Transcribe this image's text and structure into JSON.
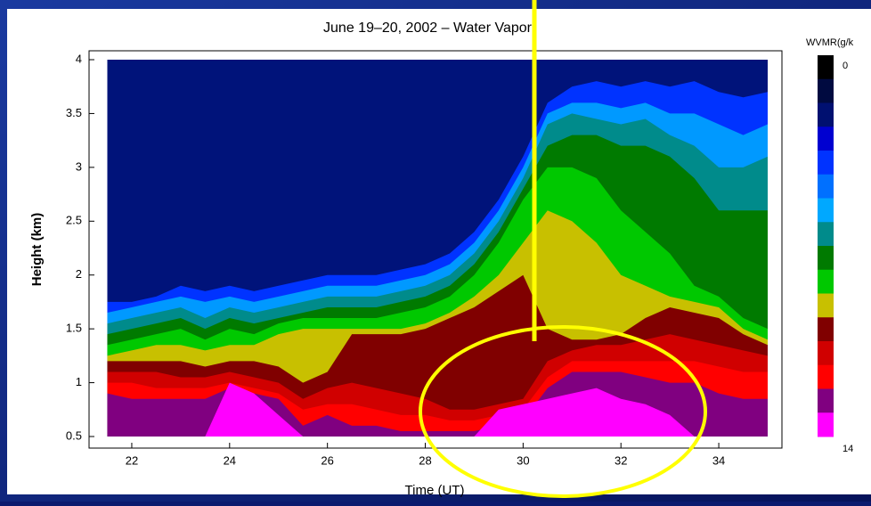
{
  "chart_data": {
    "type": "layered-area",
    "title": "June 19–20, 2002 – Water Vapor",
    "x_label": "Time (UT)",
    "y_label": "Height (km)",
    "xlim": [
      21.4,
      35
    ],
    "ylim": [
      0.5,
      4
    ],
    "xticks": [
      22,
      24,
      26,
      28,
      30,
      32,
      34
    ],
    "yticks": [
      0.5,
      1,
      1.5,
      2,
      2.5,
      3,
      3.5,
      4
    ],
    "background_color": "#00137a",
    "x": [
      21.5,
      22,
      22.5,
      23,
      23.5,
      24,
      24.5,
      25,
      25.5,
      26,
      26.5,
      27,
      27.5,
      28,
      28.5,
      29,
      29.5,
      30,
      30.5,
      31,
      31.5,
      32,
      32.5,
      33,
      33.5,
      34,
      34.5,
      35
    ],
    "series": [
      {
        "color": "#0033ff",
        "values": [
          1.75,
          1.75,
          1.8,
          1.9,
          1.85,
          1.9,
          1.85,
          1.9,
          1.95,
          2.0,
          2.0,
          2.0,
          2.05,
          2.1,
          2.2,
          2.4,
          2.7,
          3.1,
          3.6,
          3.75,
          3.8,
          3.75,
          3.8,
          3.75,
          3.8,
          3.7,
          3.65,
          3.7
        ]
      },
      {
        "color": "#0099ff",
        "values": [
          1.65,
          1.7,
          1.75,
          1.8,
          1.75,
          1.8,
          1.75,
          1.8,
          1.85,
          1.9,
          1.9,
          1.9,
          1.95,
          2.0,
          2.1,
          2.3,
          2.6,
          3.0,
          3.5,
          3.6,
          3.6,
          3.55,
          3.6,
          3.5,
          3.5,
          3.4,
          3.3,
          3.4
        ]
      },
      {
        "color": "#008b8b",
        "values": [
          1.55,
          1.6,
          1.65,
          1.7,
          1.6,
          1.7,
          1.65,
          1.7,
          1.75,
          1.8,
          1.8,
          1.8,
          1.85,
          1.9,
          2.0,
          2.2,
          2.5,
          2.9,
          3.4,
          3.5,
          3.45,
          3.4,
          3.45,
          3.3,
          3.2,
          3.0,
          3.0,
          3.1
        ]
      },
      {
        "color": "#007a00",
        "values": [
          1.45,
          1.5,
          1.55,
          1.6,
          1.5,
          1.6,
          1.55,
          1.6,
          1.65,
          1.7,
          1.7,
          1.7,
          1.75,
          1.8,
          1.9,
          2.1,
          2.4,
          2.8,
          3.2,
          3.3,
          3.3,
          3.2,
          3.2,
          3.1,
          2.9,
          2.6,
          2.6,
          2.6
        ]
      },
      {
        "color": "#00c800",
        "values": [
          1.35,
          1.4,
          1.45,
          1.5,
          1.4,
          1.5,
          1.45,
          1.55,
          1.6,
          1.6,
          1.6,
          1.6,
          1.65,
          1.7,
          1.8,
          2.0,
          2.3,
          2.7,
          3.0,
          3.0,
          2.9,
          2.6,
          2.4,
          2.2,
          1.9,
          1.8,
          1.6,
          1.5
        ]
      },
      {
        "color": "#c8c000",
        "values": [
          1.25,
          1.3,
          1.35,
          1.35,
          1.3,
          1.35,
          1.35,
          1.45,
          1.5,
          1.5,
          1.5,
          1.5,
          1.5,
          1.55,
          1.65,
          1.8,
          2.0,
          2.3,
          2.6,
          2.5,
          2.3,
          2.0,
          1.9,
          1.8,
          1.75,
          1.7,
          1.5,
          1.4
        ]
      },
      {
        "color": "#800000",
        "values": [
          1.2,
          1.2,
          1.2,
          1.2,
          1.15,
          1.2,
          1.2,
          1.15,
          1.0,
          1.1,
          1.45,
          1.45,
          1.45,
          1.5,
          1.6,
          1.7,
          1.85,
          2.0,
          1.5,
          1.4,
          1.4,
          1.45,
          1.6,
          1.7,
          1.65,
          1.6,
          1.45,
          1.35
        ]
      },
      {
        "color": "#d00000",
        "values": [
          1.1,
          1.1,
          1.1,
          1.05,
          1.05,
          1.1,
          1.05,
          1.0,
          0.85,
          0.95,
          1.0,
          0.95,
          0.9,
          0.85,
          0.75,
          0.75,
          0.8,
          0.85,
          1.2,
          1.3,
          1.35,
          1.35,
          1.4,
          1.45,
          1.4,
          1.35,
          1.3,
          1.25
        ]
      },
      {
        "color": "#ff0000",
        "values": [
          1.0,
          1.0,
          0.95,
          0.95,
          0.95,
          1.0,
          0.95,
          0.9,
          0.75,
          0.8,
          0.8,
          0.75,
          0.7,
          0.7,
          0.65,
          0.65,
          0.7,
          0.75,
          1.05,
          1.2,
          1.2,
          1.2,
          1.2,
          1.2,
          1.2,
          1.15,
          1.1,
          1.1
        ]
      },
      {
        "color": "#800080",
        "values": [
          0.9,
          0.85,
          0.85,
          0.85,
          0.85,
          0.95,
          0.9,
          0.85,
          0.6,
          0.7,
          0.6,
          0.6,
          0.55,
          0.55,
          0.55,
          0.55,
          0.6,
          0.65,
          0.95,
          1.1,
          1.1,
          1.1,
          1.05,
          1.0,
          1.0,
          0.9,
          0.85,
          0.85
        ]
      },
      {
        "color": "#ff00ff",
        "values": [
          0.5,
          0.5,
          0.5,
          0.5,
          0.5,
          1.0,
          0.9,
          0.7,
          0.5,
          0.5,
          0.5,
          0.5,
          0.5,
          0.5,
          0.5,
          0.5,
          0.75,
          0.8,
          0.85,
          0.9,
          0.95,
          0.85,
          0.8,
          0.7,
          0.5,
          0.5,
          0.5,
          0.5
        ]
      }
    ],
    "colorbar": {
      "label": "WVMR(g/k",
      "lim": [
        0,
        14
      ],
      "ticks": [
        0,
        14
      ],
      "colors": [
        "#000000",
        "#000a40",
        "#001070",
        "#0000d0",
        "#0033ff",
        "#0070ff",
        "#00a8ff",
        "#008b8b",
        "#007a00",
        "#00c800",
        "#c8c000",
        "#800000",
        "#d00000",
        "#ff0000",
        "#800080",
        "#ff00ff"
      ]
    }
  }
}
